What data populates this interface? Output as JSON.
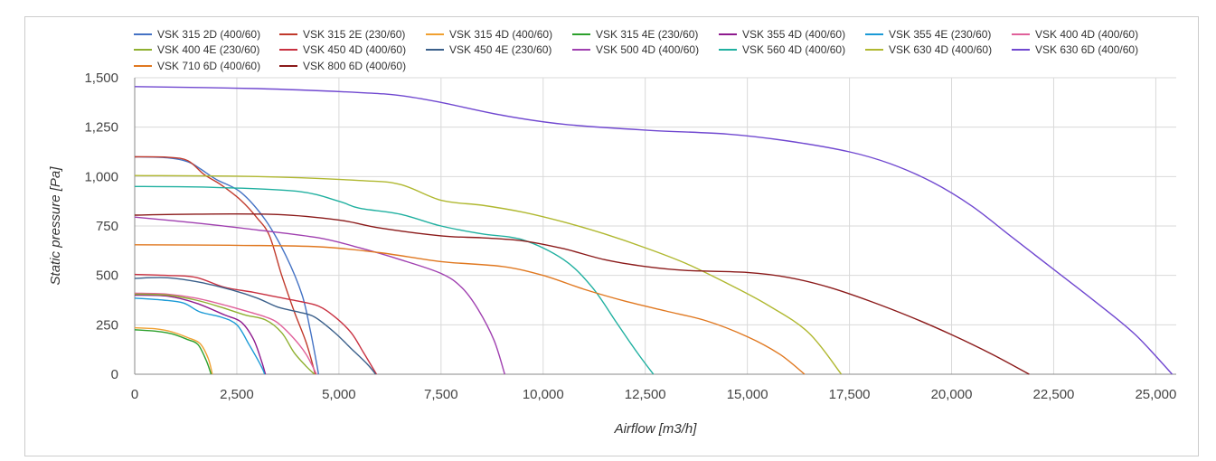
{
  "chart_data": {
    "type": "line",
    "title": "",
    "xlabel": "Airflow [m3/h]",
    "ylabel": "Static pressure [Pa]",
    "xlim": [
      0,
      25500
    ],
    "ylim": [
      0,
      1500
    ],
    "x_ticks": [
      0,
      2500,
      5000,
      7500,
      10000,
      12500,
      15000,
      17500,
      20000,
      22500,
      25000
    ],
    "x_tick_labels": [
      "0",
      "2,500",
      "5,000",
      "7,500",
      "10,000",
      "12,500",
      "15,000",
      "17,500",
      "20,000",
      "22,500",
      "25,000"
    ],
    "y_ticks": [
      0,
      250,
      500,
      750,
      1000,
      1250,
      1500
    ],
    "y_tick_labels": [
      "0",
      "250",
      "500",
      "750",
      "1,000",
      "1,250",
      "1,500"
    ],
    "grid": true,
    "legend_position": "top",
    "series": [
      {
        "name": "VSK 315 2D (400/60)",
        "color": "#4472c4",
        "points": [
          [
            0,
            1100
          ],
          [
            800,
            1095
          ],
          [
            1300,
            1075
          ],
          [
            1600,
            1040
          ],
          [
            2000,
            985
          ],
          [
            2600,
            920
          ],
          [
            3200,
            780
          ],
          [
            3700,
            600
          ],
          [
            4100,
            400
          ],
          [
            4300,
            220
          ],
          [
            4450,
            60
          ],
          [
            4500,
            0
          ]
        ]
      },
      {
        "name": "VSK 315 2E (230/60)",
        "color": "#c0392b",
        "points": [
          [
            0,
            1100
          ],
          [
            800,
            1098
          ],
          [
            1300,
            1080
          ],
          [
            1700,
            1010
          ],
          [
            2100,
            960
          ],
          [
            2600,
            880
          ],
          [
            3000,
            790
          ],
          [
            3300,
            700
          ],
          [
            3600,
            500
          ],
          [
            3900,
            320
          ],
          [
            4200,
            160
          ],
          [
            4420,
            0
          ]
        ]
      },
      {
        "name": "VSK 315 4D (400/60)",
        "color": "#f0a030",
        "points": [
          [
            0,
            235
          ],
          [
            500,
            230
          ],
          [
            900,
            215
          ],
          [
            1300,
            185
          ],
          [
            1600,
            155
          ],
          [
            1800,
            80
          ],
          [
            1900,
            0
          ]
        ]
      },
      {
        "name": "VSK 315 4E (230/60)",
        "color": "#2ca02c",
        "points": [
          [
            0,
            225
          ],
          [
            500,
            218
          ],
          [
            900,
            205
          ],
          [
            1300,
            175
          ],
          [
            1550,
            150
          ],
          [
            1750,
            70
          ],
          [
            1870,
            0
          ]
        ]
      },
      {
        "name": "VSK 355 4D (400/60)",
        "color": "#8e1a8e",
        "points": [
          [
            0,
            400
          ],
          [
            800,
            395
          ],
          [
            1500,
            360
          ],
          [
            2200,
            300
          ],
          [
            2600,
            265
          ],
          [
            2900,
            180
          ],
          [
            3100,
            70
          ],
          [
            3200,
            0
          ]
        ]
      },
      {
        "name": "VSK 355 4E (230/60)",
        "color": "#1a9ad6",
        "points": [
          [
            0,
            385
          ],
          [
            700,
            375
          ],
          [
            1200,
            360
          ],
          [
            1600,
            315
          ],
          [
            2100,
            290
          ],
          [
            2500,
            250
          ],
          [
            2800,
            150
          ],
          [
            3100,
            40
          ],
          [
            3180,
            0
          ]
        ]
      },
      {
        "name": "VSK 400 4D (400/60)",
        "color": "#e0609a",
        "points": [
          [
            0,
            410
          ],
          [
            800,
            405
          ],
          [
            1500,
            385
          ],
          [
            2200,
            350
          ],
          [
            2800,
            315
          ],
          [
            3200,
            290
          ],
          [
            3500,
            260
          ],
          [
            3900,
            180
          ],
          [
            4200,
            100
          ],
          [
            4450,
            0
          ]
        ]
      },
      {
        "name": "VSK 400 4E (230/60)",
        "color": "#8fb030",
        "points": [
          [
            0,
            405
          ],
          [
            800,
            400
          ],
          [
            1500,
            375
          ],
          [
            2100,
            340
          ],
          [
            2700,
            300
          ],
          [
            3200,
            275
          ],
          [
            3600,
            210
          ],
          [
            3900,
            110
          ],
          [
            4200,
            40
          ],
          [
            4400,
            0
          ]
        ]
      },
      {
        "name": "VSK 450 4D (400/60)",
        "color": "#c83040",
        "points": [
          [
            0,
            505
          ],
          [
            800,
            500
          ],
          [
            1500,
            490
          ],
          [
            2200,
            440
          ],
          [
            2900,
            415
          ],
          [
            3500,
            390
          ],
          [
            4000,
            370
          ],
          [
            4500,
            345
          ],
          [
            4900,
            290
          ],
          [
            5300,
            210
          ],
          [
            5600,
            110
          ],
          [
            5920,
            0
          ]
        ]
      },
      {
        "name": "VSK 450 4E (230/60)",
        "color": "#3a5f8a",
        "points": [
          [
            0,
            485
          ],
          [
            800,
            488
          ],
          [
            1600,
            465
          ],
          [
            2400,
            425
          ],
          [
            3000,
            385
          ],
          [
            3500,
            340
          ],
          [
            4000,
            315
          ],
          [
            4400,
            290
          ],
          [
            4900,
            210
          ],
          [
            5300,
            130
          ],
          [
            5700,
            50
          ],
          [
            5900,
            0
          ]
        ]
      },
      {
        "name": "VSK 500 4D (400/60)",
        "color": "#a040b0",
        "points": [
          [
            0,
            795
          ],
          [
            1500,
            765
          ],
          [
            3000,
            730
          ],
          [
            4500,
            690
          ],
          [
            5500,
            640
          ],
          [
            6500,
            580
          ],
          [
            7500,
            510
          ],
          [
            8000,
            440
          ],
          [
            8400,
            330
          ],
          [
            8800,
            170
          ],
          [
            9060,
            0
          ]
        ]
      },
      {
        "name": "VSK 560 4D (400/60)",
        "color": "#20b0a0",
        "points": [
          [
            0,
            950
          ],
          [
            2000,
            945
          ],
          [
            4000,
            925
          ],
          [
            5000,
            875
          ],
          [
            5500,
            840
          ],
          [
            6500,
            810
          ],
          [
            7500,
            750
          ],
          [
            8500,
            710
          ],
          [
            9500,
            680
          ],
          [
            10500,
            580
          ],
          [
            11200,
            440
          ],
          [
            11800,
            260
          ],
          [
            12300,
            110
          ],
          [
            12700,
            0
          ]
        ]
      },
      {
        "name": "VSK 630 4D (400/60)",
        "color": "#b0b830",
        "points": [
          [
            0,
            1005
          ],
          [
            3000,
            1000
          ],
          [
            5500,
            980
          ],
          [
            6500,
            960
          ],
          [
            7500,
            880
          ],
          [
            8500,
            855
          ],
          [
            9500,
            820
          ],
          [
            10500,
            770
          ],
          [
            11500,
            710
          ],
          [
            12500,
            640
          ],
          [
            13500,
            560
          ],
          [
            14500,
            460
          ],
          [
            15500,
            350
          ],
          [
            16500,
            210
          ],
          [
            17300,
            0
          ]
        ]
      },
      {
        "name": "VSK 630 6D (400/60)",
        "color": "#7048d0",
        "points": [
          [
            0,
            1455
          ],
          [
            3000,
            1445
          ],
          [
            5500,
            1425
          ],
          [
            6500,
            1410
          ],
          [
            7500,
            1375
          ],
          [
            9000,
            1310
          ],
          [
            10500,
            1265
          ],
          [
            12500,
            1235
          ],
          [
            14500,
            1215
          ],
          [
            16000,
            1180
          ],
          [
            17500,
            1125
          ],
          [
            18500,
            1065
          ],
          [
            19500,
            975
          ],
          [
            20500,
            850
          ],
          [
            21500,
            690
          ],
          [
            22500,
            530
          ],
          [
            23500,
            370
          ],
          [
            24500,
            200
          ],
          [
            25400,
            0
          ]
        ]
      },
      {
        "name": "VSK 710 6D (400/60)",
        "color": "#e07820",
        "points": [
          [
            0,
            655
          ],
          [
            2500,
            652
          ],
          [
            4500,
            645
          ],
          [
            6000,
            615
          ],
          [
            7500,
            570
          ],
          [
            9000,
            545
          ],
          [
            10000,
            500
          ],
          [
            11000,
            430
          ],
          [
            12000,
            370
          ],
          [
            13000,
            320
          ],
          [
            14000,
            270
          ],
          [
            15000,
            190
          ],
          [
            15800,
            100
          ],
          [
            16400,
            0
          ]
        ]
      },
      {
        "name": "VSK 800 6D (400/60)",
        "color": "#8b1a1a",
        "points": [
          [
            0,
            805
          ],
          [
            1500,
            810
          ],
          [
            3500,
            808
          ],
          [
            5000,
            780
          ],
          [
            6000,
            740
          ],
          [
            7500,
            700
          ],
          [
            8500,
            690
          ],
          [
            9500,
            675
          ],
          [
            10500,
            635
          ],
          [
            11500,
            580
          ],
          [
            12500,
            545
          ],
          [
            13500,
            525
          ],
          [
            15000,
            515
          ],
          [
            16000,
            490
          ],
          [
            17000,
            440
          ],
          [
            18000,
            370
          ],
          [
            19000,
            290
          ],
          [
            20000,
            200
          ],
          [
            21000,
            100
          ],
          [
            21900,
            0
          ]
        ]
      }
    ]
  }
}
